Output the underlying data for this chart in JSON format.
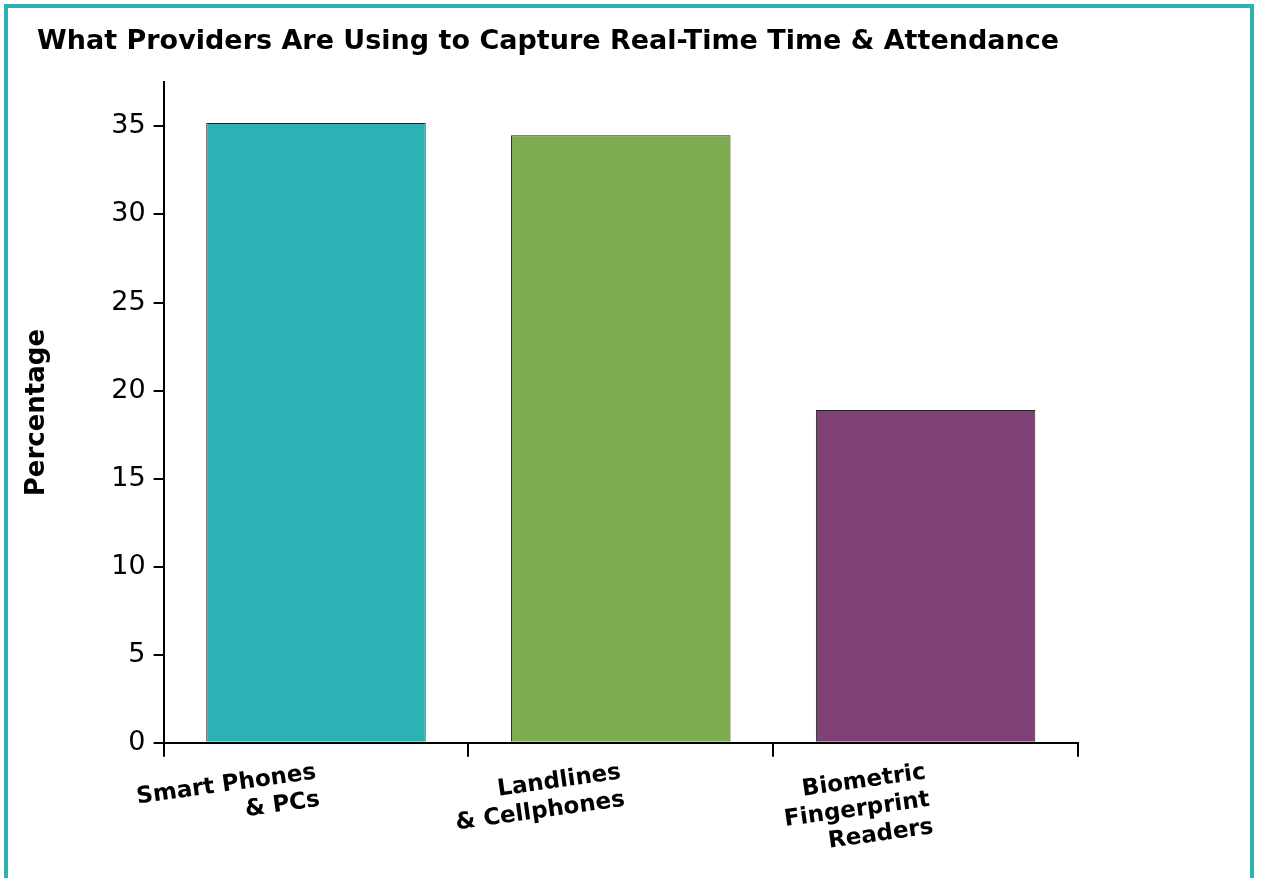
{
  "chart_data": {
    "type": "bar",
    "title": "What Providers Are Using to Capture Real-Time Time & Attendance",
    "ylabel": "Percentage",
    "categories": [
      "Smart Phones & PCs",
      "Landlines & Cellphones",
      "Biometric Fingerprint Readers"
    ],
    "values": [
      35.2,
      34.5,
      18.9
    ],
    "colors": [
      "#2cb1b4",
      "#7fac51",
      "#7f4075"
    ],
    "ylim": [
      0,
      37.5
    ],
    "yticks": [
      0,
      5,
      10,
      15,
      20,
      25,
      30,
      35
    ],
    "grid": false,
    "legend": false
  }
}
